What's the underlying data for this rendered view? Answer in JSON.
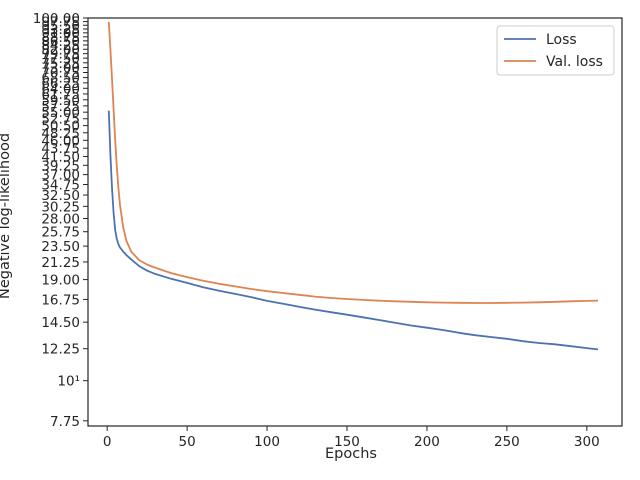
{
  "chart_data": {
    "type": "line",
    "xlabel": "Epochs",
    "ylabel": "Negative log-likelihood",
    "xlim": [
      -12,
      322
    ],
    "ylim": [
      7.5,
      100
    ],
    "yscale": "log",
    "grid": false,
    "legend_position": "top-right",
    "x_ticks": [
      0,
      50,
      100,
      150,
      200,
      250,
      300
    ],
    "x_tick_labels": [
      "0",
      "50",
      "100",
      "150",
      "200",
      "250",
      "300"
    ],
    "y_ticks": [
      7.75,
      10,
      12.25,
      14.5,
      16.75,
      19,
      21.25,
      23.5,
      25.75,
      28,
      30.25,
      32.5,
      34.75,
      37,
      39.25,
      41.5,
      43.75,
      46,
      48.25,
      50.5,
      52.75,
      55,
      57.25,
      59.5,
      61.75,
      64,
      66.25,
      68.5,
      70.75,
      73,
      75.25,
      77.5,
      79.75,
      82,
      84.25,
      86.5,
      88.75,
      91,
      93.25,
      95.5,
      97.75,
      100
    ],
    "y_tick_labels": [
      "7.75",
      "10¹",
      "12.25",
      "14.50",
      "16.75",
      "19.00",
      "21.25",
      "23.50",
      "25.75",
      "28.00",
      "30.25",
      "32.50",
      "34.75",
      "37.00",
      "39.25",
      "41.50",
      "43.75",
      "46.00",
      "48.25",
      "50.50",
      "52.75",
      "55.00",
      "57.25",
      "59.50",
      "61.75",
      "64.00",
      "66.25",
      "68.50",
      "70.75",
      "73.00",
      "75.25",
      "77.50",
      "79.75",
      "82.00",
      "84.25",
      "86.50",
      "88.75",
      "91.00",
      "93.25",
      "95.50",
      "97.75",
      "100.00"
    ],
    "series": [
      {
        "name": "Loss",
        "color": "#4c72b0",
        "x": [
          1,
          2,
          3,
          4,
          5,
          6,
          7,
          8,
          10,
          12,
          15,
          20,
          25,
          30,
          40,
          50,
          60,
          70,
          80,
          90,
          100,
          110,
          120,
          130,
          140,
          150,
          160,
          170,
          180,
          190,
          200,
          210,
          220,
          230,
          240,
          250,
          260,
          270,
          280,
          290,
          300,
          307
        ],
        "y": [
          55.5,
          42,
          34,
          29,
          26,
          24.6,
          23.8,
          23.3,
          22.7,
          22.2,
          21.6,
          20.7,
          20.1,
          19.7,
          19.1,
          18.6,
          18.1,
          17.7,
          17.35,
          17.0,
          16.6,
          16.3,
          16.0,
          15.7,
          15.45,
          15.2,
          14.95,
          14.7,
          14.45,
          14.2,
          14.0,
          13.8,
          13.55,
          13.35,
          13.2,
          13.05,
          12.85,
          12.7,
          12.6,
          12.45,
          12.3,
          12.2
        ]
      },
      {
        "name": "Val. loss",
        "color": "#dd8452",
        "x": [
          1,
          2,
          3,
          4,
          5,
          6,
          7,
          8,
          10,
          12,
          15,
          20,
          25,
          30,
          40,
          50,
          60,
          70,
          80,
          90,
          100,
          110,
          120,
          130,
          140,
          150,
          160,
          170,
          180,
          190,
          200,
          210,
          220,
          230,
          240,
          250,
          260,
          270,
          280,
          290,
          300,
          307
        ],
        "y": [
          97.5,
          82,
          68,
          56,
          46,
          39,
          34,
          30.5,
          26.5,
          24.3,
          22.7,
          21.5,
          20.9,
          20.5,
          19.8,
          19.3,
          18.85,
          18.5,
          18.2,
          17.9,
          17.65,
          17.45,
          17.25,
          17.05,
          16.9,
          16.8,
          16.7,
          16.62,
          16.55,
          16.5,
          16.45,
          16.42,
          16.4,
          16.38,
          16.38,
          16.4,
          16.42,
          16.45,
          16.5,
          16.55,
          16.6,
          16.63
        ]
      }
    ]
  }
}
